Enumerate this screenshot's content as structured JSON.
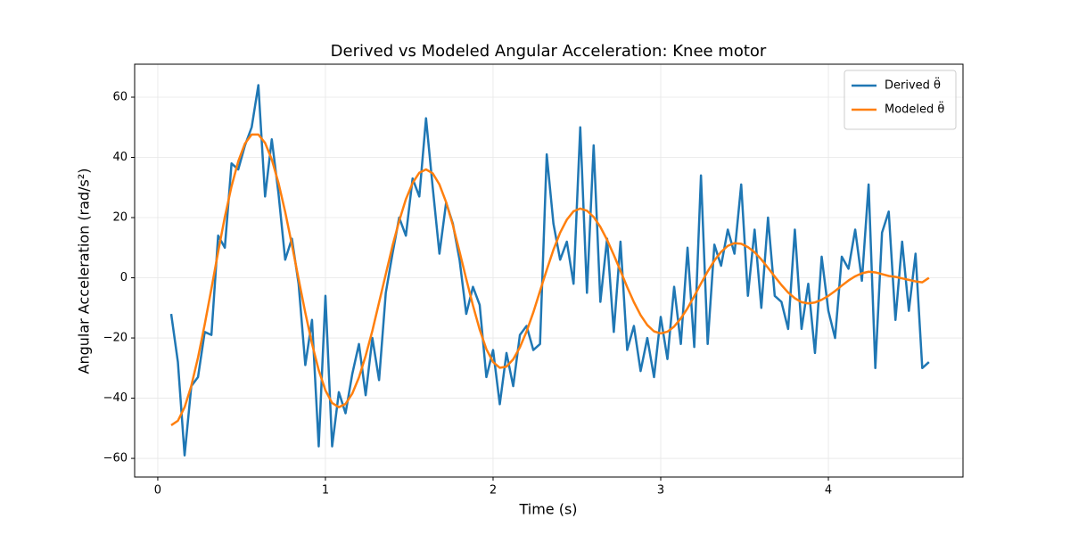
{
  "chart_data": {
    "type": "line",
    "title": "Derived vs Modeled Angular Acceleration: Knee motor",
    "x_label": "Time (s)",
    "y_label": "Angular Acceleration (rad/s²)",
    "x": [
      0.08,
      0.12,
      0.16,
      0.2,
      0.24,
      0.28,
      0.32,
      0.36,
      0.4,
      0.44,
      0.48,
      0.52,
      0.56,
      0.6,
      0.64,
      0.68,
      0.72,
      0.76,
      0.8,
      0.84,
      0.88,
      0.92,
      0.96,
      1.0,
      1.04,
      1.08,
      1.12,
      1.16,
      1.2,
      1.24,
      1.28,
      1.32,
      1.36,
      1.4,
      1.44,
      1.48,
      1.52,
      1.56,
      1.6,
      1.64,
      1.68,
      1.72,
      1.76,
      1.8,
      1.84,
      1.88,
      1.92,
      1.96,
      2.0,
      2.04,
      2.08,
      2.12,
      2.16,
      2.2,
      2.24,
      2.28,
      2.32,
      2.36,
      2.4,
      2.44,
      2.48,
      2.52,
      2.56,
      2.6,
      2.64,
      2.68,
      2.72,
      2.76,
      2.8,
      2.84,
      2.88,
      2.92,
      2.96,
      3.0,
      3.04,
      3.08,
      3.12,
      3.16,
      3.2,
      3.24,
      3.28,
      3.32,
      3.36,
      3.4,
      3.44,
      3.48,
      3.52,
      3.56,
      3.6,
      3.64,
      3.68,
      3.72,
      3.76,
      3.8,
      3.84,
      3.88,
      3.92,
      3.96,
      4.0,
      4.04,
      4.08,
      4.12,
      4.16,
      4.2,
      4.24,
      4.28,
      4.32,
      4.36,
      4.4,
      4.44,
      4.48,
      4.52,
      4.56,
      4.6
    ],
    "series": [
      {
        "name": "Derived θ̈",
        "color": "#1f77b4",
        "values": [
          -12,
          -28,
          -59,
          -36,
          -33,
          -18,
          -19,
          14,
          10,
          38,
          36,
          44,
          50,
          64,
          27,
          46,
          28,
          6,
          13,
          -2,
          -29,
          -14,
          -56,
          -6,
          -56,
          -38,
          -45,
          -32,
          -22,
          -39,
          -20,
          -34,
          -5,
          8,
          20,
          14,
          33,
          27,
          53,
          30,
          8,
          25,
          18,
          6,
          -12,
          -3,
          -9,
          -33,
          -24,
          -42,
          -25,
          -36,
          -19,
          -16,
          -24,
          -22,
          41,
          18,
          6,
          12,
          -2,
          50,
          -5,
          44,
          -8,
          13,
          -18,
          12,
          -24,
          -16,
          -31,
          -20,
          -33,
          -13,
          -27,
          -3,
          -22,
          10,
          -23,
          34,
          -22,
          11,
          4,
          16,
          8,
          31,
          -6,
          16,
          -10,
          20,
          -6,
          -8,
          -17,
          16,
          -17,
          -2,
          -25,
          7,
          -11,
          -20,
          7,
          3,
          16,
          -1,
          31,
          -30,
          15,
          22,
          -14,
          12,
          -11,
          8,
          -30,
          -28
        ]
      },
      {
        "name": "Modeled θ̈",
        "color": "#ff7f0e",
        "values": [
          -49,
          -47.5,
          -43,
          -35.9,
          -26.5,
          -15.5,
          -3.6,
          8.6,
          20.2,
          30.4,
          38.7,
          44.6,
          47.6,
          47.6,
          44.8,
          39.3,
          31.5,
          21.9,
          11.0,
          -0.4,
          -11.6,
          -21.9,
          -30.7,
          -37.4,
          -41.6,
          -43,
          -41.9,
          -38.5,
          -33.1,
          -25.9,
          -17.6,
          -8.2,
          1.2,
          10.6,
          18.9,
          26.1,
          31.5,
          34.9,
          36,
          34.7,
          31.0,
          25.1,
          17.5,
          8.7,
          -0.4,
          -9.2,
          -17.2,
          -23.7,
          -28.0,
          -29.9,
          -29.5,
          -27.1,
          -23.1,
          -17.8,
          -11.5,
          -4.4,
          2.6,
          9.3,
          15.0,
          19.3,
          22.1,
          23,
          22.3,
          20.2,
          16.9,
          12.6,
          7.6,
          2.3,
          -3.1,
          -8.1,
          -12.4,
          -15.7,
          -17.8,
          -18.5,
          -17.9,
          -16.2,
          -13.5,
          -10.1,
          -6.1,
          -1.9,
          2.1,
          5.7,
          8.6,
          10.6,
          11.5,
          11.3,
          10.2,
          8.5,
          6.1,
          3.3,
          0.4,
          -2.4,
          -4.9,
          -6.8,
          -8.1,
          -8.5,
          -8.2,
          -7.3,
          -6.0,
          -4.4,
          -2.6,
          -0.9,
          0.5,
          1.5,
          2.0,
          1.8,
          1.2,
          0.6,
          0.3,
          -0.2,
          -0.7,
          -1.2,
          -1.5,
          0
        ]
      }
    ],
    "xlim": [
      -0.138,
      4.803
    ],
    "ylim": [
      -66.2,
      70.96
    ],
    "xticks": [
      0,
      1,
      2,
      3,
      4
    ],
    "yticks": [
      {
        "value": -60,
        "label": "−60"
      },
      {
        "value": -40,
        "label": "−40"
      },
      {
        "value": -20,
        "label": "−20"
      },
      0,
      20,
      40,
      60
    ],
    "grid": true,
    "legend": "upper-right"
  }
}
